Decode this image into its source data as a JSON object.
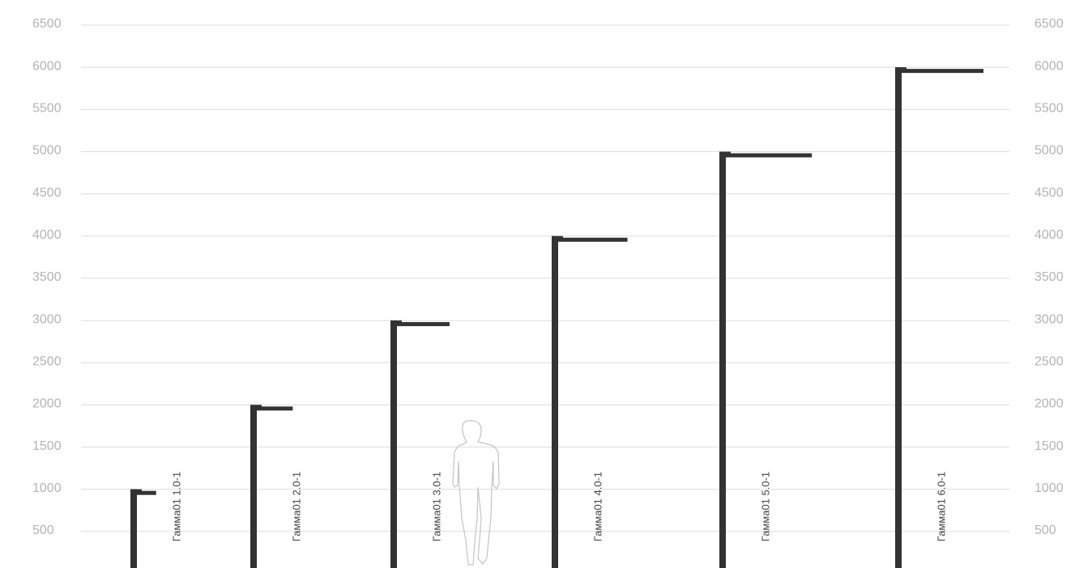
{
  "chart_data": {
    "type": "bar",
    "title": "",
    "xlabel": "",
    "ylabel": "",
    "ylim": [
      0,
      6500
    ],
    "yticks": [
      500,
      1000,
      1500,
      2000,
      2500,
      3000,
      3500,
      4000,
      4500,
      5000,
      5500,
      6000,
      6500
    ],
    "grid": true,
    "axis_labels_on": [
      "left",
      "right"
    ],
    "categories": [
      "Гамма01 1.0-1",
      "Гамма01 2.0-1",
      "Гамма01 3.0-1",
      "Гамма01 4.0-1",
      "Гамма01 5.0-1",
      "Гамма01 6.0-1"
    ],
    "values": [
      1000,
      2000,
      3000,
      4000,
      5000,
      6000
    ],
    "arm_length": [
      250,
      450,
      650,
      850,
      1050,
      1000
    ],
    "scale_figure": "person-silhouette",
    "colors": {
      "pole": "#333333",
      "grid": "#dcdcdc",
      "tick_text": "#b4b4b4",
      "label_text": "#444444",
      "figure": "#c4c4c4"
    }
  }
}
